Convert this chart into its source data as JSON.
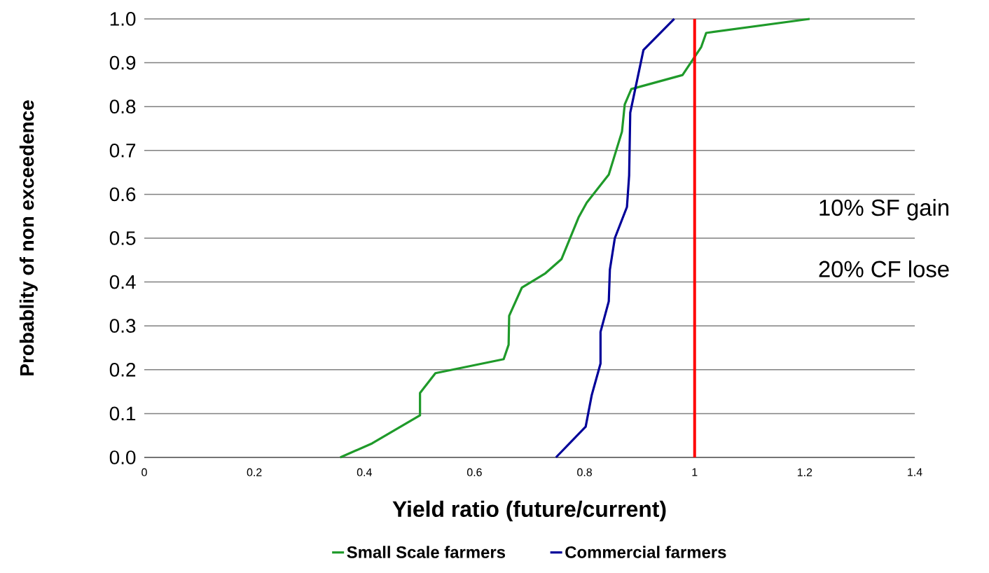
{
  "chart_data": {
    "type": "line",
    "xlabel": "Yield ratio (future/current)",
    "ylabel": "Probablity of non exceedence",
    "xlim": [
      0,
      1.4
    ],
    "ylim": [
      0,
      1
    ],
    "xticks": [
      0,
      0.2,
      0.4,
      0.6,
      0.8,
      1,
      1.2,
      1.4
    ],
    "yticks": [
      {
        "value": 0,
        "label": "0.0"
      },
      {
        "value": 0.1,
        "label": "0.1"
      },
      {
        "value": 0.2,
        "label": "0.2"
      },
      {
        "value": 0.3,
        "label": "0.3"
      },
      {
        "value": 0.4,
        "label": "0.4"
      },
      {
        "value": 0.5,
        "label": "0.5"
      },
      {
        "value": 0.6,
        "label": "0.6"
      },
      {
        "value": 0.7,
        "label": "0.7"
      },
      {
        "value": 0.8,
        "label": "0.8"
      },
      {
        "value": 0.9,
        "label": "0.9"
      },
      {
        "value": 1,
        "label": "1.0"
      }
    ],
    "grid": "y",
    "legend": "bottom",
    "marker": "none",
    "line_style": "solid",
    "series": [
      {
        "name": "Small Scale farmers",
        "color": "#1f9a2a",
        "x": [
          0.356,
          0.414,
          0.501,
          0.501,
          0.529,
          0.653,
          0.662,
          0.663,
          0.686,
          0.729,
          0.758,
          0.789,
          0.804,
          0.844,
          0.868,
          0.873,
          0.885,
          0.978,
          1.012,
          1.021,
          1.209
        ],
        "values": [
          0,
          0.032,
          0.096,
          0.147,
          0.192,
          0.224,
          0.257,
          0.323,
          0.387,
          0.42,
          0.452,
          0.547,
          0.581,
          0.645,
          0.743,
          0.805,
          0.84,
          0.872,
          0.936,
          0.968,
          1.0
        ]
      },
      {
        "name": "Commercial farmers",
        "color": "#000099",
        "x": [
          0.748,
          0.802,
          0.813,
          0.829,
          0.829,
          0.844,
          0.846,
          0.855,
          0.877,
          0.881,
          0.883,
          0.907,
          0.963
        ],
        "values": [
          0,
          0.07,
          0.142,
          0.214,
          0.286,
          0.356,
          0.428,
          0.5,
          0.571,
          0.643,
          0.786,
          0.929,
          1.0
        ]
      }
    ],
    "ref_lines": [
      {
        "axis": "x",
        "value": 1,
        "color": "#ff0000"
      }
    ],
    "annotations": [
      "10% SF gain",
      "20% CF lose"
    ]
  }
}
